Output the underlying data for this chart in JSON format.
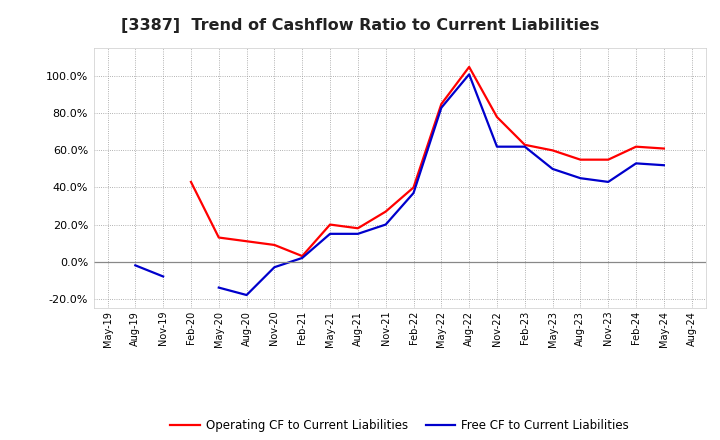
{
  "title": "[3387]  Trend of Cashflow Ratio to Current Liabilities",
  "title_fontsize": 11.5,
  "background_color": "#ffffff",
  "plot_bg_color": "#ffffff",
  "grid_color": "#999999",
  "x_labels": [
    "May-19",
    "Aug-19",
    "Nov-19",
    "Feb-20",
    "May-20",
    "Aug-20",
    "Nov-20",
    "Feb-21",
    "May-21",
    "Aug-21",
    "Nov-21",
    "Feb-22",
    "May-22",
    "Aug-22",
    "Nov-22",
    "Feb-23",
    "May-23",
    "Aug-23",
    "Nov-23",
    "Feb-24",
    "May-24",
    "Aug-24"
  ],
  "operating_cf": [
    null,
    null,
    null,
    43.0,
    13.0,
    11.0,
    9.0,
    3.0,
    20.0,
    18.0,
    27.0,
    40.0,
    85.0,
    105.0,
    78.0,
    63.0,
    60.0,
    55.0,
    55.0,
    62.0,
    61.0,
    null
  ],
  "free_cf": [
    null,
    -2.0,
    -8.0,
    null,
    -14.0,
    -18.0,
    -3.0,
    2.0,
    15.0,
    15.0,
    20.0,
    37.0,
    83.0,
    101.0,
    62.0,
    62.0,
    50.0,
    45.0,
    43.0,
    53.0,
    52.0,
    null
  ],
  "ylim": [
    -25,
    115
  ],
  "yticks": [
    -20,
    0,
    20,
    40,
    60,
    80,
    100
  ],
  "operating_color": "#ff0000",
  "free_color": "#0000cc",
  "legend_operating": "Operating CF to Current Liabilities",
  "legend_free": "Free CF to Current Liabilities",
  "line_width": 1.6
}
